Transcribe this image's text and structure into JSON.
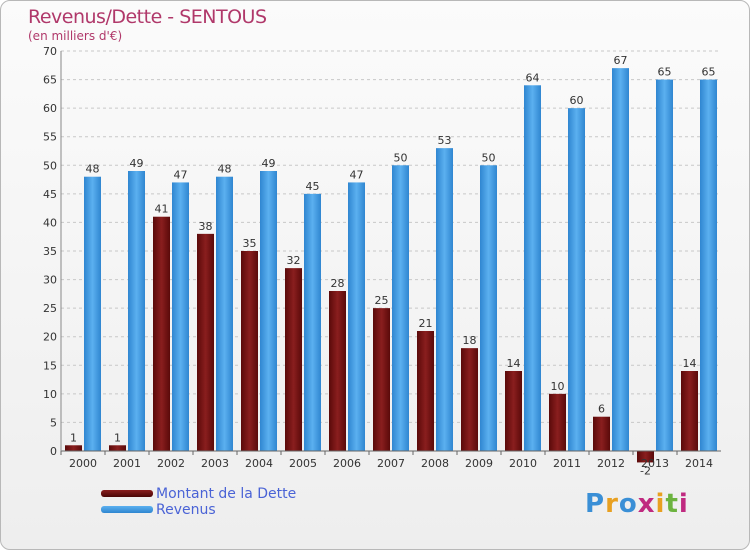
{
  "title": "Revenus/Dette - SENTOUS",
  "subtitle": "(en milliers d'€)",
  "chart_data": {
    "type": "bar",
    "categories": [
      "2000",
      "2001",
      "2002",
      "2003",
      "2004",
      "2005",
      "2006",
      "2007",
      "2008",
      "2009",
      "2010",
      "2011",
      "2012",
      "2013",
      "2014"
    ],
    "series": [
      {
        "name": "Montant de la Dette",
        "color": "#6b0f0f",
        "values": [
          1,
          1,
          41,
          38,
          35,
          32,
          28,
          25,
          21,
          18,
          14,
          10,
          6,
          -2,
          14
        ]
      },
      {
        "name": "Revenus",
        "color": "#3a97e0",
        "values": [
          48,
          49,
          47,
          48,
          49,
          45,
          47,
          50,
          53,
          50,
          64,
          60,
          67,
          65,
          65
        ]
      }
    ],
    "ylim": [
      0,
      70
    ],
    "yticks": [
      0,
      5,
      10,
      15,
      20,
      25,
      30,
      35,
      40,
      45,
      50,
      55,
      60,
      65,
      70
    ],
    "grid": true,
    "legend_position": "bottom-left"
  },
  "legend": {
    "debt_label": "Montant de la Dette",
    "revenue_label": "Revenus"
  },
  "logo": {
    "letters": [
      "P",
      "r",
      "o",
      "x",
      "i",
      "t",
      "i"
    ],
    "colors": [
      "#3a8fd6",
      "#e8a020",
      "#3a8fd6",
      "#c02a80",
      "#e8a020",
      "#6cb33f",
      "#c02a80"
    ]
  }
}
